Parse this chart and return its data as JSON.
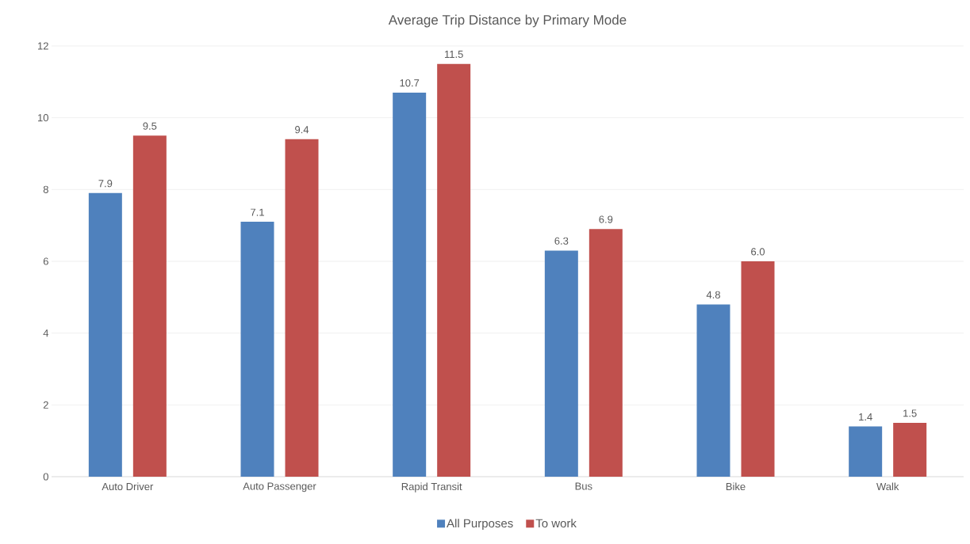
{
  "chart_data": {
    "type": "bar",
    "title": "Average Trip Distance by Primary Mode",
    "categories": [
      "Auto Driver",
      "Auto Passenger",
      "Rapid Transit",
      "Bus",
      "Bike",
      "Walk"
    ],
    "series": [
      {
        "name": "All Purposes",
        "color": "#4f81bd",
        "values": [
          7.9,
          7.1,
          10.7,
          6.3,
          4.8,
          1.4
        ],
        "value_labels": [
          "7.9",
          "7.1",
          "10.7",
          "6.3",
          "4.8",
          "1.4"
        ]
      },
      {
        "name": "To work",
        "color": "#c0504d",
        "values": [
          9.5,
          9.4,
          11.5,
          6.9,
          6.0,
          1.5
        ],
        "value_labels": [
          "9.5",
          "9.4",
          "11.5",
          "6.9",
          "6.0",
          "1.5"
        ]
      }
    ],
    "ylim": [
      0,
      12
    ],
    "yticks": [
      0,
      2,
      4,
      6,
      8,
      10,
      12
    ],
    "grid": "y",
    "legend": "bottom"
  }
}
